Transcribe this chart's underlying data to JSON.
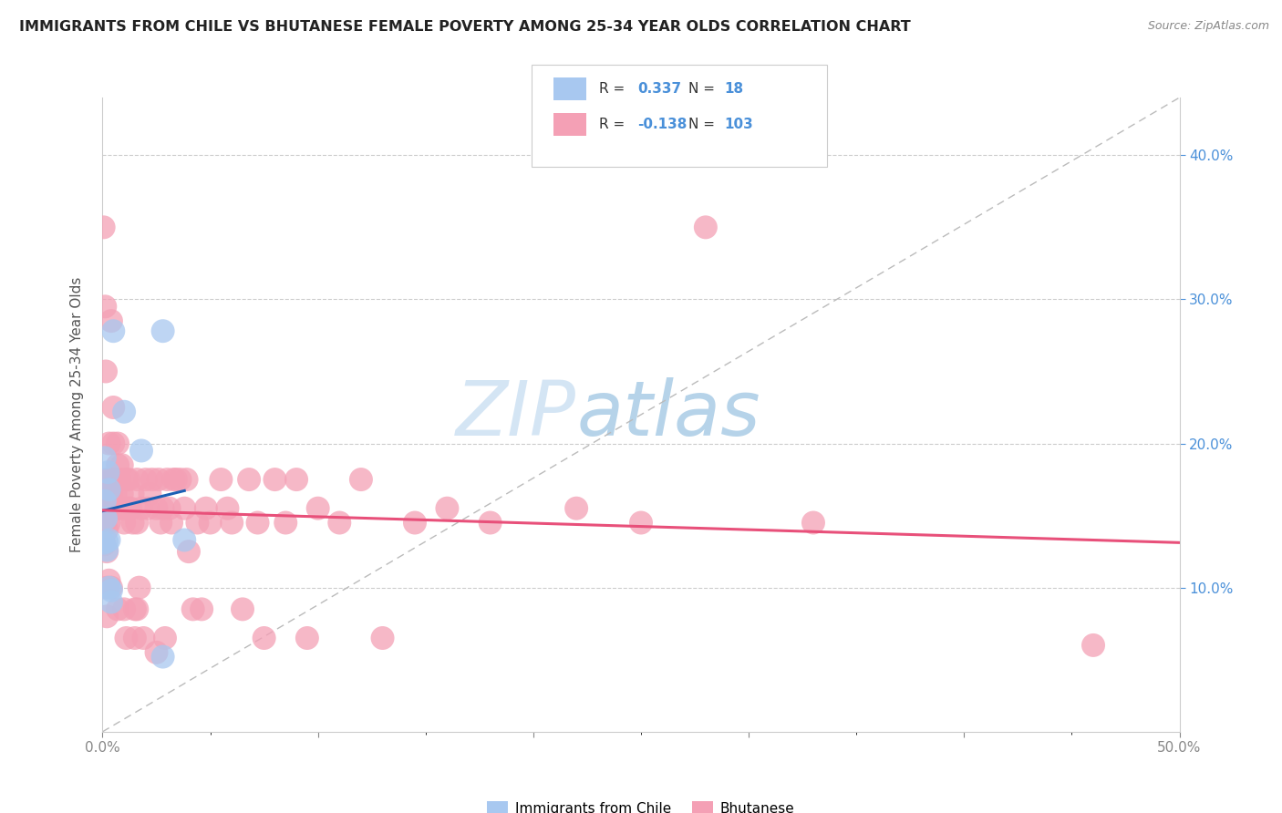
{
  "title": "IMMIGRANTS FROM CHILE VS BHUTANESE FEMALE POVERTY AMONG 25-34 YEAR OLDS CORRELATION CHART",
  "source": "Source: ZipAtlas.com",
  "ylabel": "Female Poverty Among 25-34 Year Olds",
  "xlim": [
    0.0,
    0.5
  ],
  "ylim": [
    0.0,
    0.44
  ],
  "chile_R": 0.337,
  "chile_N": 18,
  "bhutan_R": -0.138,
  "bhutan_N": 103,
  "chile_color": "#a8c8f0",
  "bhutan_color": "#f4a0b5",
  "chile_trend_color": "#1a5fb4",
  "bhutan_trend_color": "#e8507a",
  "dashed_trend_color": "#bbbbbb",
  "background_color": "#ffffff",
  "grid_color": "#cccccc",
  "watermark_zip": "ZIP",
  "watermark_atlas": "atlas",
  "chile_x": [
    0.0005,
    0.001,
    0.001,
    0.0015,
    0.002,
    0.002,
    0.0025,
    0.003,
    0.003,
    0.003,
    0.004,
    0.004,
    0.005,
    0.01,
    0.018,
    0.028,
    0.028,
    0.038
  ],
  "chile_y": [
    0.131,
    0.19,
    0.16,
    0.148,
    0.132,
    0.126,
    0.18,
    0.168,
    0.133,
    0.1,
    0.098,
    0.09,
    0.278,
    0.222,
    0.195,
    0.052,
    0.278,
    0.133
  ],
  "bhutan_x": [
    0.0003,
    0.0005,
    0.001,
    0.001,
    0.001,
    0.0012,
    0.0015,
    0.002,
    0.002,
    0.002,
    0.002,
    0.002,
    0.002,
    0.002,
    0.003,
    0.003,
    0.003,
    0.003,
    0.003,
    0.004,
    0.004,
    0.004,
    0.004,
    0.005,
    0.005,
    0.005,
    0.005,
    0.006,
    0.006,
    0.006,
    0.007,
    0.007,
    0.007,
    0.007,
    0.008,
    0.008,
    0.009,
    0.009,
    0.01,
    0.01,
    0.01,
    0.011,
    0.011,
    0.012,
    0.012,
    0.013,
    0.014,
    0.014,
    0.015,
    0.015,
    0.016,
    0.016,
    0.016,
    0.017,
    0.018,
    0.019,
    0.02,
    0.021,
    0.022,
    0.023,
    0.025,
    0.025,
    0.026,
    0.027,
    0.028,
    0.029,
    0.03,
    0.031,
    0.032,
    0.033,
    0.034,
    0.036,
    0.038,
    0.039,
    0.04,
    0.042,
    0.044,
    0.046,
    0.048,
    0.05,
    0.055,
    0.058,
    0.06,
    0.065,
    0.068,
    0.072,
    0.075,
    0.08,
    0.085,
    0.09,
    0.095,
    0.1,
    0.11,
    0.12,
    0.13,
    0.145,
    0.16,
    0.18,
    0.22,
    0.25,
    0.28,
    0.33,
    0.46
  ],
  "bhutan_y": [
    0.155,
    0.35,
    0.16,
    0.145,
    0.13,
    0.295,
    0.25,
    0.175,
    0.165,
    0.155,
    0.14,
    0.125,
    0.1,
    0.08,
    0.2,
    0.175,
    0.165,
    0.145,
    0.105,
    0.285,
    0.175,
    0.165,
    0.1,
    0.225,
    0.2,
    0.175,
    0.155,
    0.175,
    0.165,
    0.155,
    0.2,
    0.185,
    0.155,
    0.085,
    0.175,
    0.155,
    0.185,
    0.165,
    0.155,
    0.145,
    0.085,
    0.175,
    0.065,
    0.175,
    0.155,
    0.155,
    0.165,
    0.145,
    0.085,
    0.065,
    0.175,
    0.145,
    0.085,
    0.1,
    0.155,
    0.065,
    0.175,
    0.155,
    0.165,
    0.175,
    0.155,
    0.055,
    0.175,
    0.145,
    0.155,
    0.065,
    0.175,
    0.155,
    0.145,
    0.175,
    0.175,
    0.175,
    0.155,
    0.175,
    0.125,
    0.085,
    0.145,
    0.085,
    0.155,
    0.145,
    0.175,
    0.155,
    0.145,
    0.085,
    0.175,
    0.145,
    0.065,
    0.175,
    0.145,
    0.175,
    0.065,
    0.155,
    0.145,
    0.175,
    0.065,
    0.145,
    0.155,
    0.145,
    0.155,
    0.145,
    0.35,
    0.145,
    0.06
  ]
}
